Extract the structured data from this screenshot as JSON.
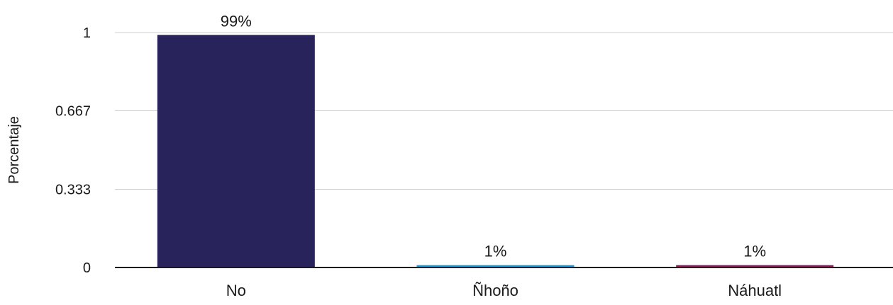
{
  "chart_data": {
    "type": "bar",
    "title": "",
    "xlabel": "",
    "ylabel": "Porcentaje",
    "categories": [
      "No",
      "Ñhoño",
      "Náhuatl"
    ],
    "values": [
      0.99,
      0.01,
      0.01
    ],
    "data_labels": [
      "99%",
      "1%",
      "1%"
    ],
    "bar_colors": [
      "#29235c",
      "#1f9ad6",
      "#8c1d5a"
    ],
    "ylim": [
      0,
      1
    ],
    "yticks": [
      0,
      0.333,
      0.667,
      1
    ],
    "ytick_labels": [
      "0",
      "0.333",
      "0.667",
      "1"
    ],
    "grid": true,
    "legend": "none"
  }
}
